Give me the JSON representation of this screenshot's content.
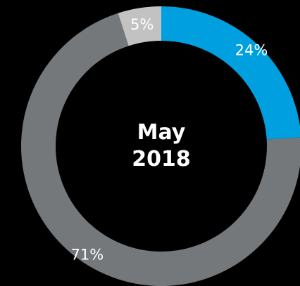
{
  "chart_data": {
    "type": "pie",
    "style": "donut",
    "center_label": [
      "May",
      "2018"
    ],
    "slices": [
      {
        "label": "24%",
        "value": 24,
        "color": "#009fdf"
      },
      {
        "label": "71%",
        "value": 71,
        "color": "#75787b"
      },
      {
        "label": "5%",
        "value": 5,
        "color": "#c2c2c2"
      }
    ],
    "start_angle": "top",
    "direction": "clockwise",
    "legend": "none",
    "background": "#000000"
  }
}
